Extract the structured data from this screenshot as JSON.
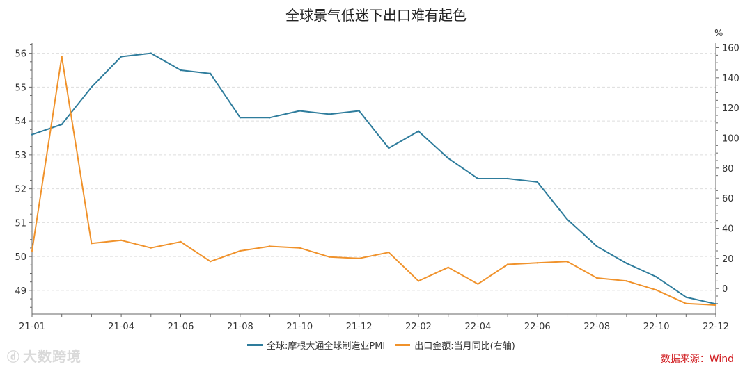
{
  "title": "全球景气低迷下出口难有起色",
  "source": "数据来源：Wind",
  "watermark": "大数跨境",
  "colors": {
    "pmi": "#2e7c9c",
    "export": "#f0922b",
    "grid": "#dddddd",
    "axis": "#666666"
  },
  "chart_data": {
    "type": "line",
    "title": "全球景气低迷下出口难有起色",
    "x": [
      "21-01",
      "21-02",
      "21-03",
      "21-04",
      "21-05",
      "21-06",
      "21-07",
      "21-08",
      "21-09",
      "21-10",
      "21-11",
      "21-12",
      "22-01",
      "22-02",
      "22-03",
      "22-04",
      "22-05",
      "22-06",
      "22-07",
      "22-08",
      "22-09",
      "22-10",
      "22-11",
      "22-12"
    ],
    "x_tick_labels": [
      "21-01",
      "21-04",
      "21-06",
      "21-08",
      "21-10",
      "21-12",
      "22-02",
      "22-04",
      "22-06",
      "22-08",
      "22-10",
      "22-12"
    ],
    "left_axis": {
      "ylim": [
        48.3,
        56.3
      ],
      "ticks": [
        49,
        50,
        51,
        52,
        53,
        54,
        55,
        56
      ]
    },
    "right_axis": {
      "unit": "%",
      "ylim": [
        -17,
        163
      ],
      "ticks": [
        0,
        20,
        40,
        60,
        80,
        100,
        120,
        140,
        160
      ]
    },
    "grid": true,
    "legend_position": "bottom",
    "series": [
      {
        "name": "全球:摩根大通全球制造业PMI",
        "axis": "left",
        "color": "#2e7c9c",
        "values": [
          53.6,
          53.9,
          55.0,
          55.9,
          56.0,
          55.5,
          55.4,
          54.1,
          54.1,
          54.3,
          54.2,
          54.3,
          53.2,
          53.7,
          52.9,
          52.3,
          52.3,
          52.2,
          51.1,
          50.3,
          49.8,
          49.4,
          48.8,
          48.6
        ]
      },
      {
        "name": "出口金额:当月同比(右轴)",
        "axis": "right",
        "color": "#f0922b",
        "values": [
          25,
          154,
          30,
          32,
          27,
          31,
          18,
          25,
          28,
          27,
          21,
          20,
          24,
          5,
          14,
          3,
          16,
          17,
          18,
          7,
          5,
          -1,
          -10,
          -11
        ]
      }
    ]
  }
}
